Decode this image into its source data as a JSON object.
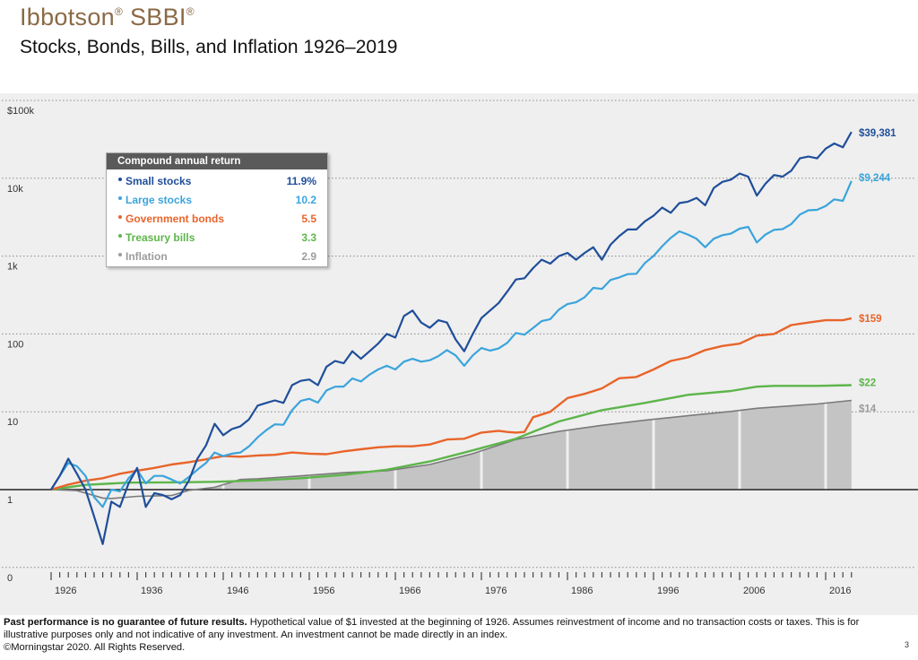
{
  "header": {
    "brand": "Ibbotson",
    "brand_mark_1": "®",
    "brand_2": "SBBI",
    "brand_mark_2": "®",
    "subtitle": "Stocks, Bonds, Bills, and Inflation 1926–2019"
  },
  "legend": {
    "title": "Compound annual return",
    "items": [
      {
        "name": "Small stocks",
        "value": "11.9%",
        "color": "#1f4e9a"
      },
      {
        "name": "Large stocks",
        "value": "10.2",
        "color": "#3aa4dc"
      },
      {
        "name": "Government bonds",
        "value": "5.5",
        "color": "#e8642a"
      },
      {
        "name": "Treasury bills",
        "value": "3.3",
        "color": "#5db54a"
      },
      {
        "name": "Inflation",
        "value": "2.9",
        "color": "#9c9c9c"
      }
    ]
  },
  "chart_data": {
    "type": "line",
    "scale": "log",
    "title": "Stocks, Bonds, Bills, and Inflation 1926–2019",
    "xlabel": "",
    "ylabel": "",
    "xlim": [
      1926,
      2019
    ],
    "y_ticks": [
      {
        "value": 100000,
        "label": "$100k"
      },
      {
        "value": 10000,
        "label": "10k"
      },
      {
        "value": 1000,
        "label": "1k"
      },
      {
        "value": 100,
        "label": "100"
      },
      {
        "value": 10,
        "label": "10"
      },
      {
        "value": 1,
        "label": "1"
      },
      {
        "value": 0.1,
        "label": "0"
      }
    ],
    "x_ticks": [
      "1926",
      "1936",
      "1946",
      "1956",
      "1966",
      "1976",
      "1986",
      "1996",
      "2006",
      "2016"
    ],
    "series": [
      {
        "name": "Small stocks",
        "color": "#1f4e9a",
        "end_label": "$39,381",
        "points": [
          [
            1926,
            1
          ],
          [
            1927,
            1.5
          ],
          [
            1928,
            2.5
          ],
          [
            1929,
            1.6
          ],
          [
            1930,
            1
          ],
          [
            1931,
            0.45
          ],
          [
            1932,
            0.2
          ],
          [
            1933,
            0.7
          ],
          [
            1934,
            0.6
          ],
          [
            1935,
            1.2
          ],
          [
            1936,
            1.9
          ],
          [
            1937,
            0.6
          ],
          [
            1938,
            0.9
          ],
          [
            1939,
            0.85
          ],
          [
            1940,
            0.75
          ],
          [
            1941,
            0.85
          ],
          [
            1942,
            1.3
          ],
          [
            1943,
            2.5
          ],
          [
            1944,
            3.7
          ],
          [
            1945,
            7
          ],
          [
            1946,
            5
          ],
          [
            1947,
            6
          ],
          [
            1948,
            6.5
          ],
          [
            1949,
            8
          ],
          [
            1950,
            12
          ],
          [
            1951,
            13
          ],
          [
            1952,
            14
          ],
          [
            1953,
            13
          ],
          [
            1954,
            22
          ],
          [
            1955,
            25
          ],
          [
            1956,
            26
          ],
          [
            1957,
            22
          ],
          [
            1958,
            38
          ],
          [
            1959,
            45
          ],
          [
            1960,
            42
          ],
          [
            1961,
            60
          ],
          [
            1962,
            48
          ],
          [
            1963,
            60
          ],
          [
            1964,
            75
          ],
          [
            1965,
            100
          ],
          [
            1966,
            90
          ],
          [
            1967,
            170
          ],
          [
            1968,
            200
          ],
          [
            1969,
            140
          ],
          [
            1970,
            120
          ],
          [
            1971,
            150
          ],
          [
            1972,
            140
          ],
          [
            1973,
            85
          ],
          [
            1974,
            60
          ],
          [
            1975,
            100
          ],
          [
            1976,
            160
          ],
          [
            1977,
            200
          ],
          [
            1978,
            250
          ],
          [
            1979,
            350
          ],
          [
            1980,
            500
          ],
          [
            1981,
            520
          ],
          [
            1982,
            700
          ],
          [
            1983,
            900
          ],
          [
            1984,
            800
          ],
          [
            1985,
            1000
          ],
          [
            1986,
            1100
          ],
          [
            1987,
            900
          ],
          [
            1988,
            1100
          ],
          [
            1989,
            1300
          ],
          [
            1990,
            900
          ],
          [
            1991,
            1400
          ],
          [
            1992,
            1800
          ],
          [
            1993,
            2200
          ],
          [
            1994,
            2200
          ],
          [
            1995,
            2800
          ],
          [
            1996,
            3300
          ],
          [
            1997,
            4200
          ],
          [
            1998,
            3600
          ],
          [
            1999,
            4800
          ],
          [
            2000,
            5000
          ],
          [
            2001,
            5600
          ],
          [
            2002,
            4500
          ],
          [
            2003,
            7500
          ],
          [
            2004,
            9000
          ],
          [
            2005,
            9600
          ],
          [
            2006,
            11500
          ],
          [
            2007,
            10500
          ],
          [
            2008,
            6000
          ],
          [
            2009,
            8500
          ],
          [
            2010,
            11000
          ],
          [
            2011,
            10500
          ],
          [
            2012,
            12500
          ],
          [
            2013,
            18000
          ],
          [
            2014,
            19000
          ],
          [
            2015,
            18000
          ],
          [
            2016,
            24000
          ],
          [
            2017,
            28000
          ],
          [
            2018,
            25000
          ],
          [
            2019,
            39381
          ]
        ]
      },
      {
        "name": "Large stocks",
        "color": "#3aa4dc",
        "end_label": "$9,244",
        "points": [
          [
            1926,
            1
          ],
          [
            1927,
            1.5
          ],
          [
            1928,
            2.2
          ],
          [
            1929,
            2
          ],
          [
            1930,
            1.5
          ],
          [
            1931,
            0.8
          ],
          [
            1932,
            0.6
          ],
          [
            1933,
            1
          ],
          [
            1934,
            0.95
          ],
          [
            1935,
            1.4
          ],
          [
            1936,
            1.8
          ],
          [
            1937,
            1.2
          ],
          [
            1938,
            1.5
          ],
          [
            1939,
            1.5
          ],
          [
            1940,
            1.35
          ],
          [
            1941,
            1.2
          ],
          [
            1942,
            1.45
          ],
          [
            1943,
            1.8
          ],
          [
            1944,
            2.2
          ],
          [
            1945,
            3
          ],
          [
            1946,
            2.7
          ],
          [
            1947,
            2.9
          ],
          [
            1948,
            3
          ],
          [
            1949,
            3.6
          ],
          [
            1950,
            4.7
          ],
          [
            1951,
            5.8
          ],
          [
            1952,
            6.9
          ],
          [
            1953,
            6.8
          ],
          [
            1954,
            10.5
          ],
          [
            1955,
            13.8
          ],
          [
            1956,
            14.7
          ],
          [
            1957,
            13.1
          ],
          [
            1958,
            18.8
          ],
          [
            1959,
            21
          ],
          [
            1960,
            21.1
          ],
          [
            1961,
            26.8
          ],
          [
            1962,
            24.5
          ],
          [
            1963,
            30
          ],
          [
            1964,
            35
          ],
          [
            1965,
            39
          ],
          [
            1966,
            35
          ],
          [
            1967,
            44
          ],
          [
            1968,
            48
          ],
          [
            1969,
            44
          ],
          [
            1970,
            46
          ],
          [
            1971,
            52
          ],
          [
            1972,
            62
          ],
          [
            1973,
            53
          ],
          [
            1974,
            39
          ],
          [
            1975,
            53
          ],
          [
            1976,
            66
          ],
          [
            1977,
            61
          ],
          [
            1978,
            65
          ],
          [
            1979,
            77
          ],
          [
            1980,
            103
          ],
          [
            1981,
            98
          ],
          [
            1982,
            119
          ],
          [
            1983,
            146
          ],
          [
            1984,
            155
          ],
          [
            1985,
            205
          ],
          [
            1986,
            242
          ],
          [
            1987,
            255
          ],
          [
            1988,
            297
          ],
          [
            1989,
            391
          ],
          [
            1990,
            379
          ],
          [
            1991,
            494
          ],
          [
            1992,
            532
          ],
          [
            1993,
            586
          ],
          [
            1994,
            593
          ],
          [
            1995,
            816
          ],
          [
            1996,
            1003
          ],
          [
            1997,
            1338
          ],
          [
            1998,
            1720
          ],
          [
            1999,
            2082
          ],
          [
            2000,
            1892
          ],
          [
            2001,
            1667
          ],
          [
            2002,
            1299
          ],
          [
            2003,
            1671
          ],
          [
            2004,
            1853
          ],
          [
            2005,
            1944
          ],
          [
            2006,
            2250
          ],
          [
            2007,
            2374
          ],
          [
            2008,
            1495
          ],
          [
            2009,
            1891
          ],
          [
            2010,
            2176
          ],
          [
            2011,
            2222
          ],
          [
            2012,
            2577
          ],
          [
            2013,
            3412
          ],
          [
            2014,
            3879
          ],
          [
            2015,
            3933
          ],
          [
            2016,
            4404
          ],
          [
            2017,
            5365
          ],
          [
            2018,
            5129
          ],
          [
            2019,
            9244
          ]
        ]
      },
      {
        "name": "Government bonds",
        "color": "#e8642a",
        "end_label": "$159",
        "points": [
          [
            1926,
            1
          ],
          [
            1928,
            1.16
          ],
          [
            1930,
            1.3
          ],
          [
            1932,
            1.4
          ],
          [
            1934,
            1.6
          ],
          [
            1936,
            1.75
          ],
          [
            1938,
            1.9
          ],
          [
            1940,
            2.1
          ],
          [
            1942,
            2.25
          ],
          [
            1944,
            2.45
          ],
          [
            1946,
            2.7
          ],
          [
            1948,
            2.65
          ],
          [
            1950,
            2.75
          ],
          [
            1952,
            2.8
          ],
          [
            1954,
            3.0
          ],
          [
            1956,
            2.9
          ],
          [
            1958,
            2.85
          ],
          [
            1960,
            3.1
          ],
          [
            1962,
            3.3
          ],
          [
            1964,
            3.5
          ],
          [
            1966,
            3.6
          ],
          [
            1968,
            3.6
          ],
          [
            1970,
            3.8
          ],
          [
            1972,
            4.4
          ],
          [
            1974,
            4.5
          ],
          [
            1976,
            5.4
          ],
          [
            1978,
            5.7
          ],
          [
            1979,
            5.5
          ],
          [
            1980,
            5.4
          ],
          [
            1981,
            5.5
          ],
          [
            1982,
            8.5
          ],
          [
            1984,
            10
          ],
          [
            1986,
            15
          ],
          [
            1988,
            17
          ],
          [
            1990,
            20
          ],
          [
            1992,
            27
          ],
          [
            1994,
            28
          ],
          [
            1996,
            35
          ],
          [
            1998,
            45
          ],
          [
            2000,
            50
          ],
          [
            2002,
            62
          ],
          [
            2004,
            70
          ],
          [
            2006,
            75
          ],
          [
            2008,
            95
          ],
          [
            2010,
            100
          ],
          [
            2012,
            130
          ],
          [
            2014,
            140
          ],
          [
            2016,
            150
          ],
          [
            2018,
            150
          ],
          [
            2019,
            159
          ]
        ]
      },
      {
        "name": "Treasury bills",
        "color": "#5db54a",
        "end_label": "$22",
        "points": [
          [
            1926,
            1
          ],
          [
            1930,
            1.15
          ],
          [
            1935,
            1.23
          ],
          [
            1940,
            1.24
          ],
          [
            1945,
            1.26
          ],
          [
            1950,
            1.31
          ],
          [
            1955,
            1.4
          ],
          [
            1960,
            1.55
          ],
          [
            1965,
            1.8
          ],
          [
            1970,
            2.3
          ],
          [
            1975,
            3.2
          ],
          [
            1980,
            4.5
          ],
          [
            1985,
            7.5
          ],
          [
            1990,
            10.5
          ],
          [
            1995,
            13
          ],
          [
            2000,
            16.5
          ],
          [
            2005,
            18.5
          ],
          [
            2008,
            21
          ],
          [
            2010,
            21.5
          ],
          [
            2015,
            21.5
          ],
          [
            2019,
            22
          ]
        ]
      },
      {
        "name": "Inflation",
        "color": "#9c9c9c",
        "end_label": "$14",
        "points": [
          [
            1926,
            1
          ],
          [
            1929,
            0.97
          ],
          [
            1932,
            0.78
          ],
          [
            1933,
            0.77
          ],
          [
            1936,
            0.82
          ],
          [
            1940,
            0.84
          ],
          [
            1942,
            0.98
          ],
          [
            1945,
            1.07
          ],
          [
            1948,
            1.35
          ],
          [
            1950,
            1.38
          ],
          [
            1955,
            1.5
          ],
          [
            1960,
            1.65
          ],
          [
            1965,
            1.75
          ],
          [
            1970,
            2.1
          ],
          [
            1975,
            2.9
          ],
          [
            1980,
            4.4
          ],
          [
            1985,
            5.6
          ],
          [
            1990,
            6.7
          ],
          [
            1995,
            7.8
          ],
          [
            2000,
            8.9
          ],
          [
            2005,
            10.1
          ],
          [
            2008,
            11.1
          ],
          [
            2010,
            11.5
          ],
          [
            2015,
            12.6
          ],
          [
            2019,
            14
          ]
        ]
      }
    ]
  },
  "footer": {
    "bold": "Past performance is no guarantee of future results.",
    "text": " Hypothetical value of $1 invested at the beginning of 1926. Assumes reinvestment of income and no transaction costs or taxes. This is for illustrative purposes only and not indicative of any investment. An investment cannot be made directly in an index.",
    "copyright": "©Morningstar 2020. All Rights Reserved.",
    "page": "3"
  }
}
